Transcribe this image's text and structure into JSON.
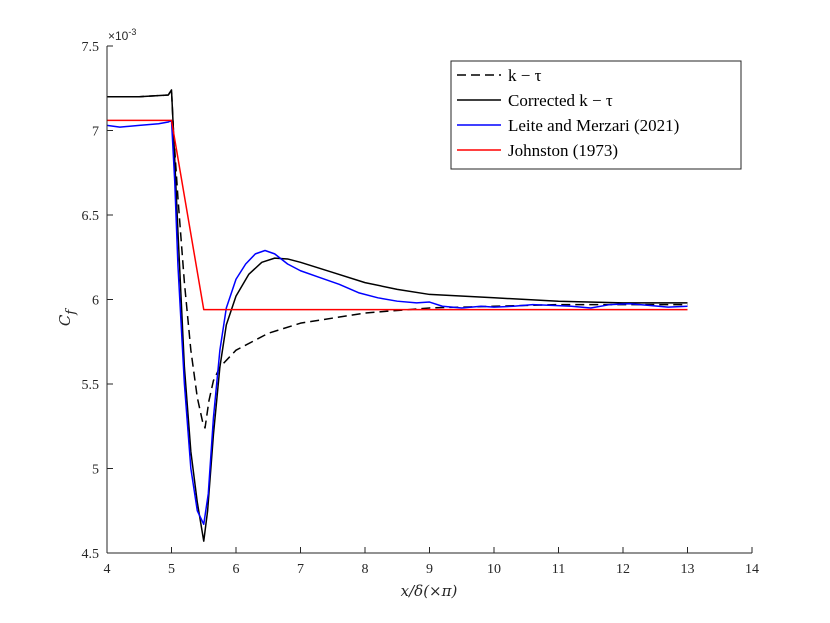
{
  "chart_data": {
    "type": "line",
    "xlabel": "x/δ(×π)",
    "ylabel": "C_f",
    "ylabel_main": "C",
    "ylabel_sub": "f",
    "y_multiplier": "×10",
    "y_exponent": "-3",
    "xlim": [
      4,
      14
    ],
    "ylim": [
      4.5,
      7.5
    ],
    "xticks": [
      "4",
      "5",
      "6",
      "7",
      "8",
      "9",
      "10",
      "11",
      "12",
      "13",
      "14"
    ],
    "yticks": [
      "4.5",
      "5",
      "5.5",
      "6",
      "6.5",
      "7",
      "7.5"
    ],
    "legend_position": "top-right",
    "grid": false,
    "series": [
      {
        "name": "k − τ",
        "style": "dashed",
        "color": "#000000",
        "points": [
          [
            4,
            7.2
          ],
          [
            4.5,
            7.2
          ],
          [
            4.95,
            7.21
          ],
          [
            5.0,
            7.24
          ],
          [
            5.03,
            7.0
          ],
          [
            5.1,
            6.6
          ],
          [
            5.2,
            6.1
          ],
          [
            5.3,
            5.7
          ],
          [
            5.4,
            5.42
          ],
          [
            5.48,
            5.28
          ],
          [
            5.52,
            5.24
          ],
          [
            5.58,
            5.4
          ],
          [
            5.65,
            5.52
          ],
          [
            5.75,
            5.6
          ],
          [
            6.0,
            5.7
          ],
          [
            6.5,
            5.8
          ],
          [
            7,
            5.86
          ],
          [
            8,
            5.92
          ],
          [
            9,
            5.95
          ],
          [
            10,
            5.96
          ],
          [
            11,
            5.97
          ],
          [
            12,
            5.97
          ],
          [
            13,
            5.97
          ]
        ]
      },
      {
        "name": "Corrected k − τ",
        "style": "solid",
        "color": "#000000",
        "points": [
          [
            4,
            7.2
          ],
          [
            4.5,
            7.2
          ],
          [
            4.95,
            7.21
          ],
          [
            5.0,
            7.24
          ],
          [
            5.03,
            7.0
          ],
          [
            5.1,
            6.4
          ],
          [
            5.2,
            5.6
          ],
          [
            5.3,
            5.1
          ],
          [
            5.4,
            4.8
          ],
          [
            5.5,
            4.57
          ],
          [
            5.56,
            4.75
          ],
          [
            5.65,
            5.2
          ],
          [
            5.75,
            5.6
          ],
          [
            5.85,
            5.85
          ],
          [
            6.0,
            6.02
          ],
          [
            6.2,
            6.15
          ],
          [
            6.4,
            6.22
          ],
          [
            6.6,
            6.245
          ],
          [
            6.8,
            6.24
          ],
          [
            7.0,
            6.22
          ],
          [
            7.5,
            6.16
          ],
          [
            8.0,
            6.1
          ],
          [
            8.5,
            6.06
          ],
          [
            9,
            6.03
          ],
          [
            10,
            6.01
          ],
          [
            11,
            5.99
          ],
          [
            12,
            5.98
          ],
          [
            13,
            5.98
          ]
        ]
      },
      {
        "name": "Leite and Merzari (2021)",
        "style": "solid",
        "color": "#0000ff",
        "points": [
          [
            4,
            7.03
          ],
          [
            4.2,
            7.02
          ],
          [
            4.5,
            7.03
          ],
          [
            4.8,
            7.04
          ],
          [
            4.95,
            7.05
          ],
          [
            5.0,
            7.06
          ],
          [
            5.05,
            6.7
          ],
          [
            5.1,
            6.2
          ],
          [
            5.2,
            5.5
          ],
          [
            5.3,
            5.0
          ],
          [
            5.4,
            4.75
          ],
          [
            5.5,
            4.67
          ],
          [
            5.57,
            4.85
          ],
          [
            5.65,
            5.3
          ],
          [
            5.75,
            5.7
          ],
          [
            5.85,
            5.95
          ],
          [
            6.0,
            6.12
          ],
          [
            6.15,
            6.21
          ],
          [
            6.3,
            6.27
          ],
          [
            6.45,
            6.29
          ],
          [
            6.6,
            6.27
          ],
          [
            6.8,
            6.21
          ],
          [
            7.0,
            6.17
          ],
          [
            7.3,
            6.13
          ],
          [
            7.6,
            6.09
          ],
          [
            7.9,
            6.04
          ],
          [
            8.2,
            6.01
          ],
          [
            8.5,
            5.99
          ],
          [
            8.8,
            5.98
          ],
          [
            9.0,
            5.985
          ],
          [
            9.2,
            5.96
          ],
          [
            9.5,
            5.95
          ],
          [
            9.8,
            5.96
          ],
          [
            10.0,
            5.955
          ],
          [
            10.3,
            5.96
          ],
          [
            10.6,
            5.97
          ],
          [
            10.9,
            5.965
          ],
          [
            11.2,
            5.96
          ],
          [
            11.5,
            5.95
          ],
          [
            11.8,
            5.97
          ],
          [
            12.1,
            5.975
          ],
          [
            12.4,
            5.965
          ],
          [
            12.7,
            5.955
          ],
          [
            13,
            5.96
          ]
        ]
      },
      {
        "name": "Johnston (1973)",
        "style": "solid",
        "color": "#ff0000",
        "points": [
          [
            4,
            7.06
          ],
          [
            5.0,
            7.06
          ],
          [
            5.5,
            5.94
          ],
          [
            13,
            5.94
          ]
        ]
      }
    ]
  }
}
